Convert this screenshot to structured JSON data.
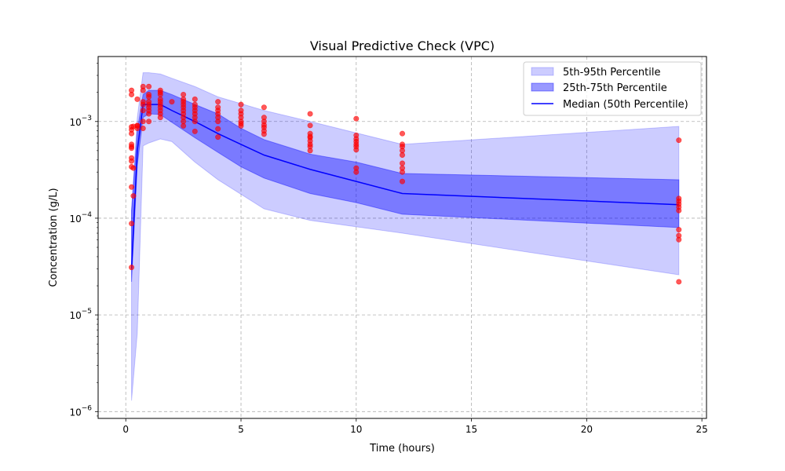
{
  "chart_data": {
    "type": "line",
    "title": "Visual Predictive Check (VPC)",
    "xlabel": "Time (hours)",
    "ylabel": "Concentration (g/L)",
    "xlim": [
      -1.2,
      25.2
    ],
    "ylim": [
      8.5e-07,
      0.0047
    ],
    "yscale": "log",
    "grid": true,
    "legend_position": "top-right",
    "x_ticks": [
      0,
      5,
      10,
      15,
      20,
      25
    ],
    "x_tick_labels": [
      "0",
      "5",
      "10",
      "15",
      "20",
      "25"
    ],
    "y_ticks": [
      1e-06,
      1e-05,
      0.0001,
      0.001
    ],
    "y_tick_labels": [
      {
        "base": "10",
        "exp": "−6"
      },
      {
        "base": "10",
        "exp": "−5"
      },
      {
        "base": "10",
        "exp": "−4"
      },
      {
        "base": "10",
        "exp": "−3"
      }
    ],
    "series": [
      {
        "name": "5th-95th Percentile",
        "kind": "band",
        "color": "#0000ff",
        "opacity": 0.2,
        "x": [
          0.25,
          0.5,
          0.75,
          1.0,
          1.5,
          2.0,
          3.0,
          4.0,
          6.0,
          8.0,
          12.0,
          24.0
        ],
        "lower": [
          1.3e-06,
          6.5e-06,
          0.00056,
          0.0006,
          0.00066,
          0.00062,
          0.00038,
          0.00025,
          0.000125,
          9.5e-05,
          7e-05,
          2.6e-05
        ],
        "upper": [
          0.00012,
          0.0011,
          0.0032,
          0.0032,
          0.0031,
          0.0028,
          0.0023,
          0.0018,
          0.0013,
          0.001,
          0.00058,
          0.00089
        ]
      },
      {
        "name": "25th-75th Percentile",
        "kind": "band",
        "color": "#0000ff",
        "opacity": 0.4,
        "x": [
          0.25,
          0.5,
          0.75,
          1.0,
          1.5,
          2.0,
          3.0,
          4.0,
          5.0,
          6.0,
          8.0,
          10.0,
          12.0,
          24.0
        ],
        "lower": [
          2.2e-05,
          0.00035,
          0.0011,
          0.0012,
          0.00118,
          0.00098,
          0.00068,
          0.00048,
          0.00034,
          0.00026,
          0.00018,
          0.000145,
          0.00011,
          8e-05
        ],
        "upper": [
          0.00012,
          0.0008,
          0.0019,
          0.0021,
          0.0021,
          0.0019,
          0.0015,
          0.0012,
          0.00085,
          0.00065,
          0.00046,
          0.00038,
          0.00029,
          0.00025
        ]
      },
      {
        "name": "Median (50th Percentile)",
        "kind": "line",
        "color": "#0000ff",
        "x": [
          0.25,
          0.5,
          0.75,
          1.0,
          1.5,
          2.0,
          3.0,
          4.0,
          5.0,
          6.0,
          8.0,
          10.0,
          12.0,
          24.0
        ],
        "values": [
          3e-05,
          0.0005,
          0.0015,
          0.0015,
          0.0015,
          0.0013,
          0.001,
          0.00075,
          0.00058,
          0.00045,
          0.00032,
          0.00024,
          0.00018,
          0.000138
        ]
      },
      {
        "name": "Observed",
        "kind": "scatter",
        "color": "#ff0000",
        "opacity": 0.65,
        "x": [
          0.25,
          0.25,
          0.25,
          0.25,
          0.25,
          0.25,
          0.25,
          0.25,
          0.25,
          0.25,
          0.25,
          0.25,
          0.25,
          0.25,
          0.33,
          0.33,
          0.33,
          0.5,
          0.5,
          0.5,
          0.5,
          0.75,
          0.75,
          0.75,
          0.75,
          0.75,
          0.75,
          0.75,
          1.0,
          1.0,
          1.0,
          1.0,
          1.0,
          1.0,
          1.0,
          1.0,
          1.0,
          1.5,
          1.5,
          1.5,
          1.5,
          1.5,
          1.5,
          1.5,
          1.5,
          1.5,
          1.5,
          2.0,
          2.5,
          2.5,
          2.5,
          2.5,
          2.5,
          2.5,
          2.5,
          2.5,
          2.5,
          2.5,
          3.0,
          3.0,
          3.0,
          3.0,
          3.0,
          3.0,
          3.0,
          3.0,
          4.0,
          4.0,
          4.0,
          4.0,
          4.0,
          4.0,
          4.0,
          4.0,
          5.0,
          5.0,
          5.0,
          5.0,
          5.0,
          5.0,
          5.0,
          6.0,
          6.0,
          6.0,
          6.0,
          6.0,
          6.0,
          6.0,
          8.0,
          8.0,
          8.0,
          8.0,
          8.0,
          8.0,
          8.0,
          8.0,
          8.0,
          10.0,
          10.0,
          10.0,
          10.0,
          10.0,
          10.0,
          10.0,
          10.0,
          10.0,
          12.0,
          12.0,
          12.0,
          12.0,
          12.0,
          12.0,
          12.0,
          12.0,
          12.0,
          24.0,
          24.0,
          24.0,
          24.0,
          24.0,
          24.0,
          24.0,
          24.0,
          24.0,
          24.0
        ],
        "values": [
          0.0021,
          0.0019,
          0.00088,
          0.00082,
          0.00075,
          0.00058,
          0.00055,
          0.00053,
          0.00042,
          0.00039,
          0.00034,
          0.00021,
          8.8e-05,
          3.1e-05,
          0.00033,
          0.00017,
          0.00089,
          0.0017,
          0.00091,
          0.00085,
          0.0009,
          0.0023,
          0.0021,
          0.0016,
          0.0015,
          0.0013,
          0.001,
          0.00085,
          0.0023,
          0.0019,
          0.0018,
          0.0016,
          0.0015,
          0.0014,
          0.0013,
          0.0012,
          0.001,
          0.0021,
          0.002,
          0.0019,
          0.0017,
          0.0016,
          0.0015,
          0.0014,
          0.0013,
          0.0012,
          0.0011,
          0.0016,
          0.0019,
          0.0017,
          0.0016,
          0.0015,
          0.0014,
          0.0013,
          0.0012,
          0.0011,
          0.001,
          0.0009,
          0.0017,
          0.0015,
          0.0014,
          0.0013,
          0.0012,
          0.0011,
          0.001,
          0.00079,
          0.0016,
          0.0014,
          0.0013,
          0.0012,
          0.0011,
          0.001,
          0.00084,
          0.00069,
          0.0015,
          0.0013,
          0.0012,
          0.0011,
          0.001,
          0.00095,
          0.0009,
          0.0014,
          0.0011,
          0.001,
          0.00092,
          0.00087,
          0.0008,
          0.00074,
          0.0012,
          0.00091,
          0.00075,
          0.0007,
          0.00068,
          0.00063,
          0.00058,
          0.00055,
          0.0005,
          0.00107,
          0.00072,
          0.00066,
          0.00062,
          0.00058,
          0.00055,
          0.00051,
          0.00033,
          0.0003,
          0.00075,
          0.00058,
          0.00055,
          0.0005,
          0.00045,
          0.00037,
          0.00033,
          0.0003,
          0.00024,
          0.00064,
          0.00016,
          0.00015,
          0.00014,
          0.00013,
          0.00012,
          7.6e-05,
          6.6e-05,
          6e-05,
          2.2e-05
        ]
      }
    ]
  }
}
